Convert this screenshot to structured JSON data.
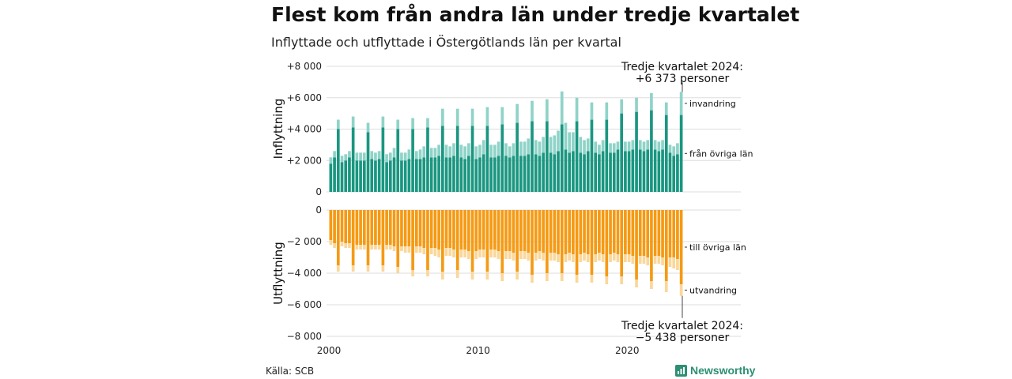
{
  "title": "Flest kom från andra län under tredje kvartalet",
  "subtitle": "Inflyttade och utflyttade i Östergötlands län per kvartal",
  "source": "Källa: SCB",
  "brand": "Newsworthy",
  "colors": {
    "in_dark": "#1a9680",
    "in_light": "#8fd3c8",
    "out_dark": "#f59a14",
    "out_light": "#fad79a",
    "grid": "#dddddd"
  },
  "chart_data": {
    "type": "bar",
    "x_start": 2000.0,
    "x_step": 0.25,
    "x_ticks": [
      "2000",
      "2010",
      "2020"
    ],
    "x_tick_values": [
      2000,
      2010,
      2020
    ],
    "panels": [
      {
        "name": "inflyttning",
        "ylabel": "Inflyttning",
        "ylim": [
          0,
          8000
        ],
        "y_ticks": [
          "0",
          "+2 000",
          "+4 000",
          "+6 000",
          "+8 000"
        ],
        "y_tick_values": [
          0,
          2000,
          4000,
          6000,
          8000
        ],
        "series": [
          {
            "name": "från övriga län",
            "color_key": "in_dark",
            "values": [
              1800,
              2200,
              4000,
              1900,
              2000,
              2200,
              4100,
              2000,
              2000,
              2000,
              3800,
              2100,
              2000,
              2100,
              4100,
              1900,
              2000,
              2200,
              4000,
              2000,
              2000,
              2100,
              4000,
              2100,
              2100,
              2200,
              4100,
              2200,
              2200,
              2300,
              4200,
              2200,
              2200,
              2300,
              4200,
              2200,
              2100,
              2300,
              4200,
              2100,
              2200,
              2400,
              4200,
              2200,
              2200,
              2300,
              4300,
              2300,
              2200,
              2300,
              4400,
              2300,
              2300,
              2400,
              4500,
              2400,
              2300,
              2500,
              4500,
              2500,
              2400,
              2600,
              4300,
              2700,
              2500,
              2600,
              4500,
              2500,
              2400,
              2600,
              4600,
              2500,
              2400,
              2600,
              4600,
              2500,
              2500,
              2700,
              5000,
              2600,
              2600,
              2700,
              5100,
              2700,
              2600,
              2700,
              5200,
              2700,
              2600,
              2700,
              4900,
              2500,
              2300,
              2400,
              4900
            ]
          },
          {
            "name": "invandring",
            "color_key": "in_light",
            "values": [
              400,
              400,
              600,
              400,
              400,
              400,
              700,
              500,
              500,
              500,
              600,
              500,
              500,
              500,
              700,
              500,
              500,
              600,
              600,
              500,
              500,
              600,
              700,
              500,
              600,
              700,
              600,
              600,
              600,
              700,
              1100,
              800,
              700,
              800,
              1100,
              800,
              800,
              800,
              1100,
              800,
              800,
              900,
              1200,
              800,
              800,
              900,
              1100,
              800,
              700,
              800,
              1200,
              900,
              900,
              1000,
              1300,
              900,
              900,
              1000,
              1400,
              1000,
              1200,
              1300,
              2100,
              1700,
              1300,
              1200,
              1500,
              1000,
              900,
              800,
              1100,
              700,
              600,
              700,
              1100,
              600,
              600,
              500,
              900,
              600,
              600,
              600,
              900,
              600,
              600,
              600,
              1100,
              600,
              600,
              600,
              800,
              500,
              600,
              700,
              1473
            ]
          }
        ],
        "right_labels": [
          "invandring",
          "från övriga län"
        ],
        "annotation_lines": [
          "Tredje kvartalet 2024:",
          "+6 373 personer"
        ]
      },
      {
        "name": "utflyttning",
        "ylabel": "Utflyttning",
        "ylim": [
          -8000,
          0
        ],
        "y_ticks": [
          "0",
          "−2 000",
          "−4 000",
          "−6 000",
          "−8 000"
        ],
        "y_tick_values": [
          0,
          -2000,
          -4000,
          -6000,
          -8000
        ],
        "series": [
          {
            "name": "till övriga län",
            "color_key": "out_dark",
            "values": [
              -1900,
              -2100,
              -3500,
              -2000,
              -2100,
              -2100,
              -3500,
              -2200,
              -2200,
              -2200,
              -3500,
              -2200,
              -2200,
              -2200,
              -3500,
              -2200,
              -2200,
              -2300,
              -3600,
              -2300,
              -2300,
              -2300,
              -3800,
              -2300,
              -2300,
              -2400,
              -3800,
              -2400,
              -2400,
              -2500,
              -3900,
              -2400,
              -2400,
              -2500,
              -3800,
              -2500,
              -2500,
              -2600,
              -3900,
              -2600,
              -2500,
              -2500,
              -3900,
              -2500,
              -2500,
              -2600,
              -4000,
              -2600,
              -2600,
              -2700,
              -3900,
              -2600,
              -2600,
              -2700,
              -4100,
              -2700,
              -2600,
              -2700,
              -4000,
              -2700,
              -2700,
              -2800,
              -4000,
              -2800,
              -2700,
              -2800,
              -4100,
              -2800,
              -2700,
              -2800,
              -4100,
              -2800,
              -2700,
              -2800,
              -4200,
              -2800,
              -2700,
              -2800,
              -4200,
              -2800,
              -2800,
              -2900,
              -4400,
              -2900,
              -2900,
              -3000,
              -4500,
              -2900,
              -2900,
              -3000,
              -4500,
              -3000,
              -3000,
              -3100,
              -4700
            ]
          },
          {
            "name": "utvandring",
            "color_key": "out_light",
            "values": [
              -300,
              -300,
              -400,
              -300,
              -300,
              -300,
              -400,
              -300,
              -300,
              -300,
              -400,
              -300,
              -300,
              -300,
              -400,
              -300,
              -300,
              -300,
              -400,
              -300,
              -400,
              -400,
              -400,
              -400,
              -400,
              -400,
              -400,
              -400,
              -500,
              -500,
              -500,
              -500,
              -500,
              -500,
              -500,
              -500,
              -500,
              -500,
              -500,
              -500,
              -500,
              -500,
              -500,
              -500,
              -500,
              -500,
              -500,
              -500,
              -500,
              -500,
              -500,
              -500,
              -500,
              -500,
              -500,
              -500,
              -500,
              -500,
              -500,
              -500,
              -500,
              -500,
              -500,
              -500,
              -500,
              -500,
              -500,
              -500,
              -500,
              -500,
              -500,
              -500,
              -500,
              -500,
              -500,
              -500,
              -500,
              -500,
              -500,
              -500,
              -500,
              -500,
              -500,
              -500,
              -500,
              -500,
              -500,
              -500,
              -500,
              -500,
              -700,
              -600,
              -700,
              -700,
              -738
            ]
          }
        ],
        "right_labels": [
          "till övriga län",
          "utvandring"
        ],
        "annotation_lines": [
          "Tredje kvartalet 2024:",
          "−5 438 personer"
        ]
      }
    ]
  }
}
